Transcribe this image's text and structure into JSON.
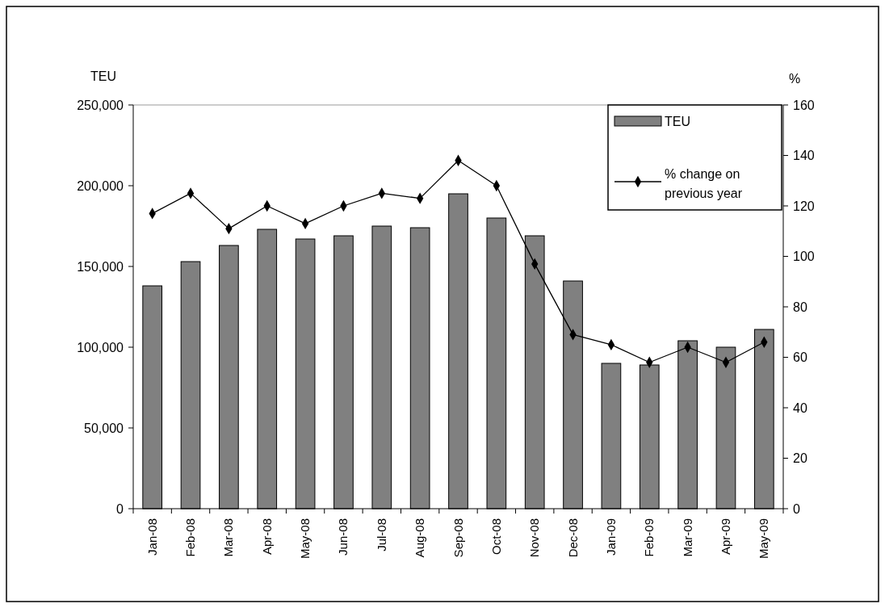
{
  "chart_data": {
    "type": "bar",
    "ylabel": "TEU",
    "y2label": "%",
    "categories": [
      "Jan-08",
      "Feb-08",
      "Mar-08",
      "Apr-08",
      "May-08",
      "Jun-08",
      "Jul-08",
      "Aug-08",
      "Sep-08",
      "Oct-08",
      "Nov-08",
      "Dec-08",
      "Jan-09",
      "Feb-09",
      "Mar-09",
      "Apr-09",
      "May-09"
    ],
    "series": [
      {
        "name": "TEU",
        "color": "#808080",
        "values": [
          138000,
          153000,
          163000,
          173000,
          167000,
          169000,
          175000,
          174000,
          195000,
          180000,
          169000,
          141000,
          90000,
          89000,
          104000,
          100000,
          111000
        ]
      },
      {
        "name": "% change on previous year",
        "type": "line",
        "axis": "y2",
        "color": "#000000",
        "marker": "diamond",
        "values": [
          117,
          125,
          111,
          120,
          113,
          120,
          125,
          123,
          138,
          128,
          97,
          69,
          65,
          58,
          64,
          58,
          66
        ]
      }
    ],
    "ylim": [
      0,
      250000
    ],
    "yticks": [
      {
        "value": 0,
        "label": "0"
      },
      {
        "value": 50000,
        "label": "50,000"
      },
      {
        "value": 100000,
        "label": "100,000"
      },
      {
        "value": 150000,
        "label": "150,000"
      },
      {
        "value": 200000,
        "label": "200,000"
      },
      {
        "value": 250000,
        "label": "250,000"
      }
    ],
    "y2lim": [
      0,
      160
    ],
    "y2ticks": [
      0,
      20,
      40,
      60,
      80,
      100,
      120,
      140,
      160
    ],
    "legend": "top right",
    "grid": false
  }
}
